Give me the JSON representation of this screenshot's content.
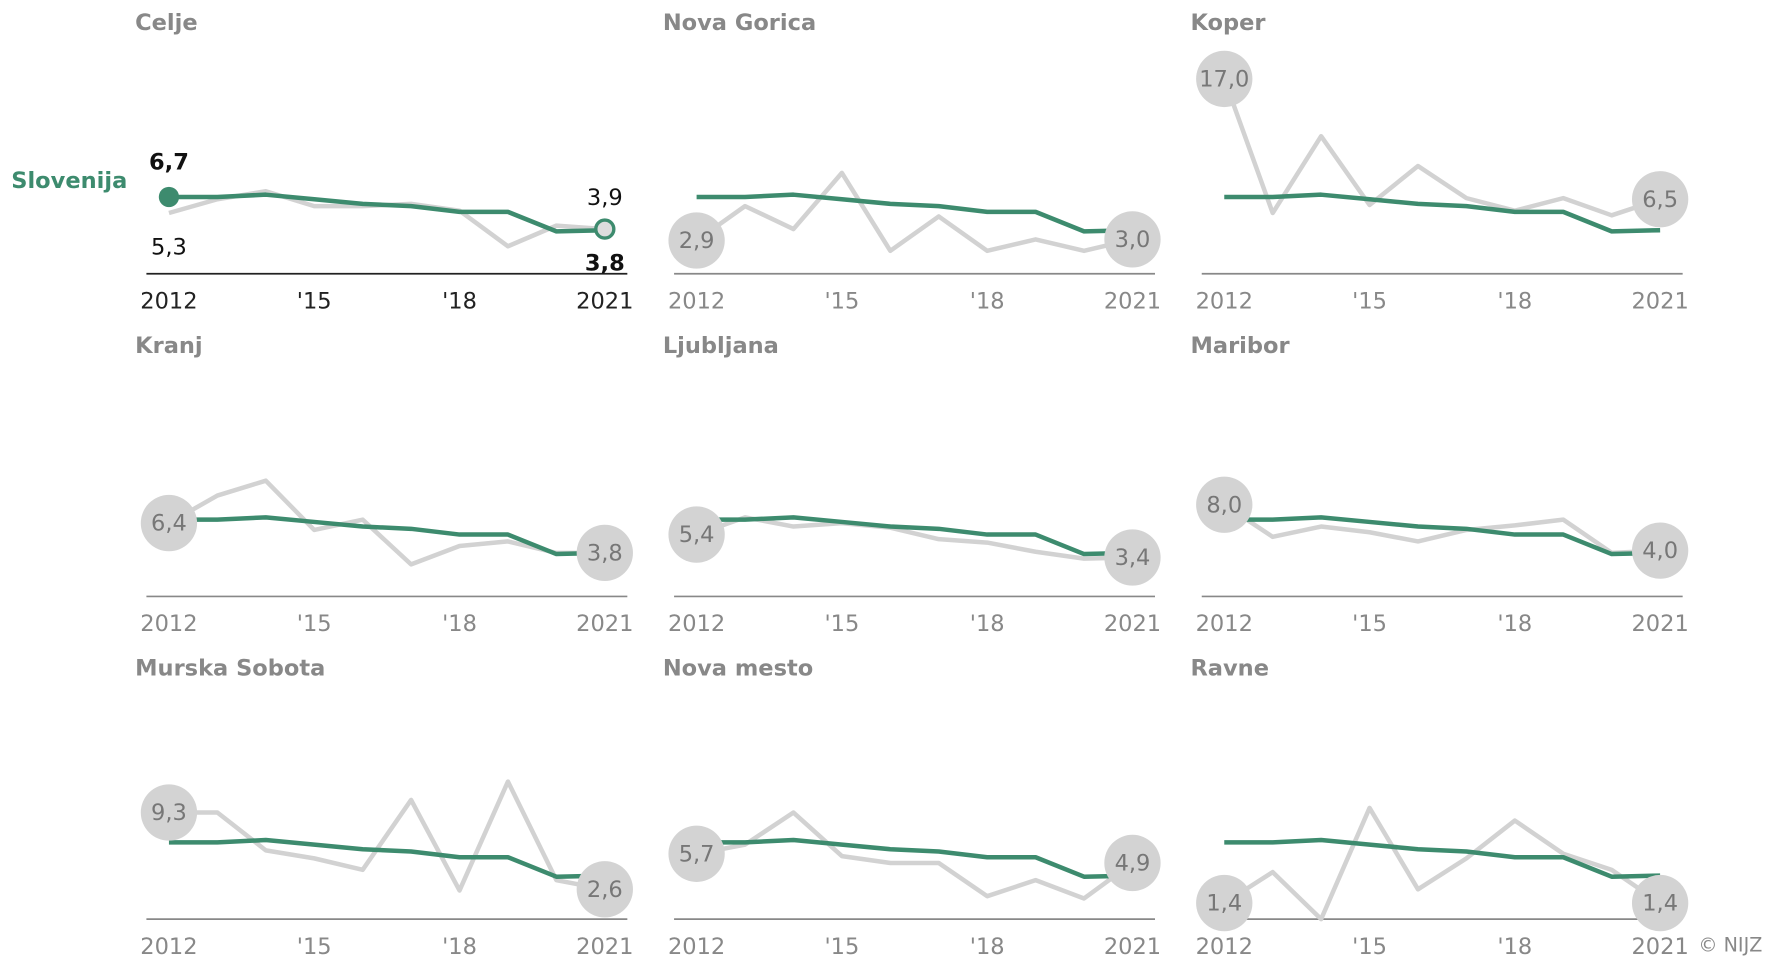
{
  "chart_data": [
    {
      "type": "line",
      "title": "Celje",
      "x": [
        2012,
        2013,
        2014,
        2015,
        2016,
        2017,
        2018,
        2019,
        2020,
        2021
      ],
      "xlim": [
        2012,
        2021
      ],
      "xticks": [
        2012,
        {
          "value": 2015,
          "label": "'15"
        },
        {
          "value": 2018,
          "label": "'18"
        },
        2021
      ],
      "ylim": [
        0,
        17
      ],
      "series": [
        {
          "name": "Slovenija",
          "color": "#3d8b6e",
          "values": [
            6.7,
            6.7,
            6.9,
            6.5,
            6.1,
            5.9,
            5.4,
            5.4,
            3.7,
            3.8
          ],
          "value_labels": [
            "6,7",
            null,
            null,
            null,
            null,
            null,
            null,
            null,
            null,
            "3,8"
          ]
        },
        {
          "name": "Celje",
          "color": "#d2d2d2",
          "values": [
            5.3,
            6.5,
            7.2,
            5.9,
            5.9,
            6.1,
            5.5,
            2.4,
            4.2,
            3.9
          ],
          "value_labels": [
            "5,3",
            null,
            null,
            null,
            null,
            null,
            null,
            null,
            null,
            "3,9"
          ]
        }
      ]
    },
    {
      "type": "line",
      "title": "Nova Gorica",
      "x": [
        2012,
        2013,
        2014,
        2015,
        2016,
        2017,
        2018,
        2019,
        2020,
        2021
      ],
      "xlim": [
        2012,
        2021
      ],
      "xticks": [
        2012,
        {
          "value": 2015,
          "label": "'15"
        },
        {
          "value": 2018,
          "label": "'18"
        },
        2021
      ],
      "ylim": [
        0,
        17
      ],
      "series": [
        {
          "color": "#3d8b6e",
          "values": [
            6.7,
            6.7,
            6.9,
            6.5,
            6.1,
            5.9,
            5.4,
            5.4,
            3.7,
            3.8
          ]
        },
        {
          "color": "#d2d2d2",
          "values": [
            2.9,
            5.9,
            3.9,
            8.8,
            2.0,
            5.0,
            2.0,
            3.0,
            2.0,
            3.0
          ],
          "value_labels": [
            "2,9",
            null,
            null,
            null,
            null,
            null,
            null,
            null,
            null,
            "3,0"
          ]
        }
      ]
    },
    {
      "type": "line",
      "title": "Koper",
      "x": [
        2012,
        2013,
        2014,
        2015,
        2016,
        2017,
        2018,
        2019,
        2020,
        2021
      ],
      "xlim": [
        2012,
        2021
      ],
      "xticks": [
        2012,
        {
          "value": 2015,
          "label": "'15"
        },
        {
          "value": 2018,
          "label": "'18"
        },
        2021
      ],
      "ylim": [
        0,
        17
      ],
      "series": [
        {
          "color": "#3d8b6e",
          "values": [
            6.7,
            6.7,
            6.9,
            6.5,
            6.1,
            5.9,
            5.4,
            5.4,
            3.7,
            3.8
          ]
        },
        {
          "color": "#d2d2d2",
          "values": [
            17.0,
            5.3,
            12.0,
            6.0,
            9.4,
            6.6,
            5.5,
            6.6,
            5.1,
            6.5
          ],
          "value_labels": [
            "17,0",
            null,
            null,
            null,
            null,
            null,
            null,
            null,
            null,
            "6,5"
          ]
        }
      ]
    },
    {
      "type": "line",
      "title": "Kranj",
      "x": [
        2012,
        2013,
        2014,
        2015,
        2016,
        2017,
        2018,
        2019,
        2020,
        2021
      ],
      "xlim": [
        2012,
        2021
      ],
      "xticks": [
        2012,
        {
          "value": 2015,
          "label": "'15"
        },
        {
          "value": 2018,
          "label": "'18"
        },
        2021
      ],
      "ylim": [
        0,
        17
      ],
      "series": [
        {
          "color": "#3d8b6e",
          "values": [
            6.7,
            6.7,
            6.9,
            6.5,
            6.1,
            5.9,
            5.4,
            5.4,
            3.7,
            3.8
          ]
        },
        {
          "color": "#d2d2d2",
          "values": [
            6.4,
            8.8,
            10.1,
            5.8,
            6.7,
            2.8,
            4.4,
            4.8,
            3.8,
            3.8
          ],
          "value_labels": [
            "6,4",
            null,
            null,
            null,
            null,
            null,
            null,
            null,
            null,
            "3,8"
          ]
        }
      ]
    },
    {
      "type": "line",
      "title": "Ljubljana",
      "x": [
        2012,
        2013,
        2014,
        2015,
        2016,
        2017,
        2018,
        2019,
        2020,
        2021
      ],
      "xlim": [
        2012,
        2021
      ],
      "xticks": [
        2012,
        {
          "value": 2015,
          "label": "'15"
        },
        {
          "value": 2018,
          "label": "'18"
        },
        2021
      ],
      "ylim": [
        0,
        17
      ],
      "series": [
        {
          "color": "#3d8b6e",
          "values": [
            6.7,
            6.7,
            6.9,
            6.5,
            6.1,
            5.9,
            5.4,
            5.4,
            3.7,
            3.8
          ]
        },
        {
          "color": "#d2d2d2",
          "values": [
            5.4,
            6.9,
            6.1,
            6.4,
            6.0,
            5.0,
            4.7,
            3.9,
            3.3,
            3.4
          ],
          "value_labels": [
            "5,4",
            null,
            null,
            null,
            null,
            null,
            null,
            null,
            null,
            "3,4"
          ]
        }
      ]
    },
    {
      "type": "line",
      "title": "Maribor",
      "x": [
        2012,
        2013,
        2014,
        2015,
        2016,
        2017,
        2018,
        2019,
        2020,
        2021
      ],
      "xlim": [
        2012,
        2021
      ],
      "xticks": [
        2012,
        {
          "value": 2015,
          "label": "'15"
        },
        {
          "value": 2018,
          "label": "'18"
        },
        2021
      ],
      "ylim": [
        0,
        17
      ],
      "series": [
        {
          "color": "#3d8b6e",
          "values": [
            6.7,
            6.7,
            6.9,
            6.5,
            6.1,
            5.9,
            5.4,
            5.4,
            3.7,
            3.8
          ]
        },
        {
          "color": "#d2d2d2",
          "values": [
            8.0,
            5.2,
            6.1,
            5.6,
            4.8,
            5.8,
            6.2,
            6.7,
            3.8,
            4.0
          ],
          "value_labels": [
            "8,0",
            null,
            null,
            null,
            null,
            null,
            null,
            null,
            null,
            "4,0"
          ]
        }
      ]
    },
    {
      "type": "line",
      "title": "Murska Sobota",
      "x": [
        2012,
        2013,
        2014,
        2015,
        2016,
        2017,
        2018,
        2019,
        2020,
        2021
      ],
      "xlim": [
        2012,
        2021
      ],
      "xticks": [
        2012,
        {
          "value": 2015,
          "label": "'15"
        },
        {
          "value": 2018,
          "label": "'18"
        },
        2021
      ],
      "ylim": [
        0,
        17
      ],
      "series": [
        {
          "color": "#3d8b6e",
          "values": [
            6.7,
            6.7,
            6.9,
            6.5,
            6.1,
            5.9,
            5.4,
            5.4,
            3.7,
            3.8
          ]
        },
        {
          "color": "#d2d2d2",
          "values": [
            9.3,
            9.3,
            6.0,
            5.3,
            4.3,
            10.4,
            2.5,
            12.0,
            3.4,
            2.6
          ],
          "value_labels": [
            "9,3",
            null,
            null,
            null,
            null,
            null,
            null,
            null,
            null,
            "2,6"
          ]
        }
      ]
    },
    {
      "type": "line",
      "title": "Nova mesto",
      "x": [
        2012,
        2013,
        2014,
        2015,
        2016,
        2017,
        2018,
        2019,
        2020,
        2021
      ],
      "xlim": [
        2012,
        2021
      ],
      "xticks": [
        2012,
        {
          "value": 2015,
          "label": "'15"
        },
        {
          "value": 2018,
          "label": "'18"
        },
        2021
      ],
      "ylim": [
        0,
        17
      ],
      "series": [
        {
          "color": "#3d8b6e",
          "values": [
            6.7,
            6.7,
            6.9,
            6.5,
            6.1,
            5.9,
            5.4,
            5.4,
            3.7,
            3.8
          ]
        },
        {
          "color": "#d2d2d2",
          "values": [
            5.7,
            6.5,
            9.3,
            5.5,
            4.9,
            4.9,
            2.0,
            3.4,
            1.8,
            4.9
          ],
          "value_labels": [
            "5,7",
            null,
            null,
            null,
            null,
            null,
            null,
            null,
            null,
            "4,9"
          ]
        }
      ]
    },
    {
      "type": "line",
      "title": "Ravne",
      "x": [
        2012,
        2013,
        2014,
        2015,
        2016,
        2017,
        2018,
        2019,
        2020,
        2021
      ],
      "xlim": [
        2012,
        2021
      ],
      "xticks": [
        2012,
        {
          "value": 2015,
          "label": "'15"
        },
        {
          "value": 2018,
          "label": "'18"
        },
        2021
      ],
      "ylim": [
        0,
        17
      ],
      "series": [
        {
          "color": "#3d8b6e",
          "values": [
            6.7,
            6.7,
            6.9,
            6.5,
            6.1,
            5.9,
            5.4,
            5.4,
            3.7,
            3.8
          ]
        },
        {
          "color": "#d2d2d2",
          "values": [
            1.4,
            4.1,
            0.0,
            9.7,
            2.6,
            5.3,
            8.6,
            5.7,
            4.3,
            1.4
          ],
          "value_labels": [
            "1,4",
            null,
            null,
            null,
            null,
            null,
            null,
            null,
            null,
            "1,4"
          ]
        }
      ]
    }
  ],
  "credit": "© NIJZ"
}
